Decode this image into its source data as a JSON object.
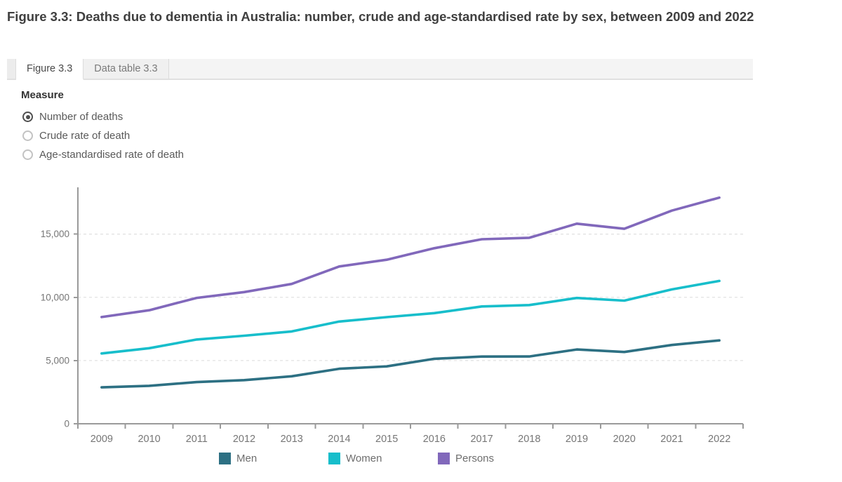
{
  "title": "Figure 3.3: Deaths due to dementia in Australia: number, crude and age-standardised rate by sex, between 2009 and 2022",
  "tabs": [
    {
      "label": "Figure 3.3",
      "active": true
    },
    {
      "label": "Data table 3.3",
      "active": false
    }
  ],
  "measure": {
    "label": "Measure",
    "options": [
      {
        "label": "Number of deaths",
        "selected": true
      },
      {
        "label": "Crude rate of death",
        "selected": false
      },
      {
        "label": "Age-standardised rate of death",
        "selected": false
      }
    ]
  },
  "chart_data": {
    "type": "line",
    "title": "",
    "xlabel": "",
    "ylabel": "",
    "x": [
      "2009",
      "2010",
      "2011",
      "2012",
      "2013",
      "2014",
      "2015",
      "2016",
      "2017",
      "2018",
      "2019",
      "2020",
      "2021",
      "2022"
    ],
    "series": [
      {
        "name": "Men",
        "color": "#2d7083",
        "values": [
          2881,
          3003,
          3294,
          3451,
          3755,
          4352,
          4538,
          5136,
          5318,
          5323,
          5879,
          5679,
          6231,
          6592
        ]
      },
      {
        "name": "Women",
        "color": "#17becb",
        "values": [
          5561,
          5976,
          6662,
          6966,
          7305,
          8086,
          8433,
          8749,
          9276,
          9388,
          9949,
          9740,
          10628,
          11295
        ]
      },
      {
        "name": "Persons",
        "color": "#8168bb",
        "values": [
          8442,
          8979,
          9956,
          10417,
          11060,
          12438,
          12971,
          13885,
          14594,
          14711,
          15828,
          15419,
          16859,
          17887
        ]
      }
    ],
    "yticks": [
      0,
      5000,
      10000,
      15000
    ],
    "ytick_labels": [
      "0",
      "5,000",
      "10,000",
      "15,000"
    ],
    "ylim": [
      0,
      18700
    ],
    "grid": "horizontal-dashed",
    "legend_position": "bottom",
    "axis_color": "#9a9a9a",
    "grid_color": "#e2e2e2",
    "tick_label_color": "#767676"
  }
}
